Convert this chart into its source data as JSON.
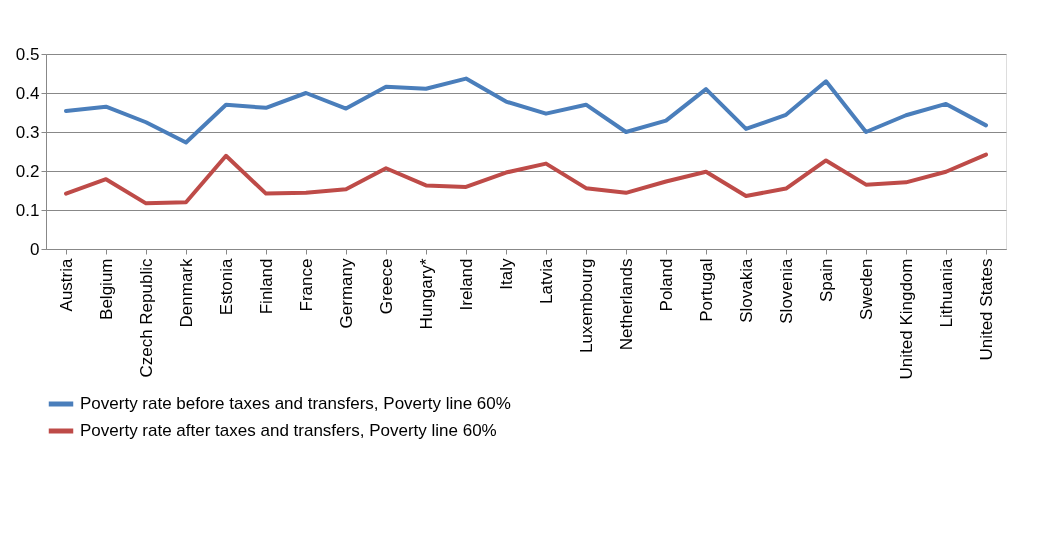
{
  "chart_data": {
    "type": "line",
    "categories": [
      "Austria",
      "Belgium",
      "Czech Republic",
      "Denmark",
      "Estonia",
      "Finland",
      "France",
      "Germany",
      "Greece",
      "Hungary*",
      "Ireland",
      "Italy",
      "Latvia",
      "Luxembourg",
      "Netherlands",
      "Poland",
      "Portugal",
      "Slovakia",
      "Slovenia",
      "Spain",
      "Sweden",
      "United Kingdom",
      "Lithuania",
      "United States"
    ],
    "series": [
      {
        "name": "Poverty rate before taxes and transfers, Poverty line 60%",
        "color": "#4a7ebb",
        "values": [
          0.354,
          0.365,
          0.325,
          0.273,
          0.37,
          0.362,
          0.4,
          0.36,
          0.416,
          0.411,
          0.437,
          0.378,
          0.347,
          0.37,
          0.3,
          0.329,
          0.41,
          0.308,
          0.344,
          0.43,
          0.3,
          0.343,
          0.372,
          0.317
        ]
      },
      {
        "name": "Poverty rate after taxes and transfers, Poverty line 60%",
        "color": "#be4b48",
        "values": [
          0.142,
          0.179,
          0.117,
          0.12,
          0.239,
          0.142,
          0.144,
          0.153,
          0.207,
          0.163,
          0.159,
          0.196,
          0.219,
          0.156,
          0.144,
          0.173,
          0.198,
          0.136,
          0.155,
          0.227,
          0.165,
          0.171,
          0.198,
          0.242
        ]
      }
    ],
    "ylim": [
      0,
      0.5
    ],
    "yticks": [
      0,
      0.1,
      0.2,
      0.3,
      0.4,
      0.5
    ],
    "grid": "y",
    "legend": "bottom",
    "marker": "none",
    "line_style": "solid"
  }
}
